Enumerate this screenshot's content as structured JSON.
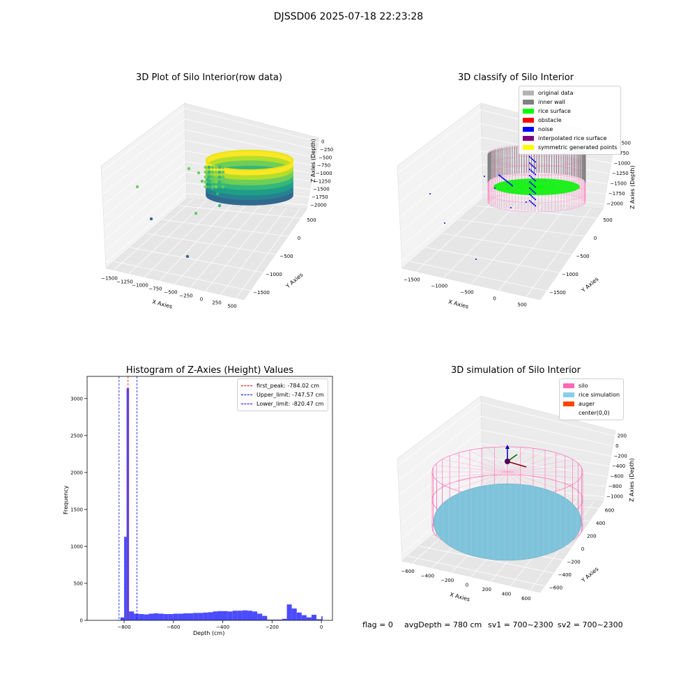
{
  "suptitle": "DJSSD06 2025-07-18 22:23:28",
  "chart_data": [
    {
      "type": "scatter",
      "subtype": "3d",
      "title": "3D Plot of Silo Interior(row data)",
      "xlabel": "X Axies",
      "ylabel": "Y Axies",
      "zlabel": "Z Axies (Depth)",
      "x_ticks": [
        "−1500",
        "−1250",
        "−1000",
        "−750",
        "−500",
        "−250",
        "0",
        "250",
        "500"
      ],
      "y_ticks": [
        "500",
        "0",
        "−500",
        "−1000",
        "−1500"
      ],
      "z_ticks": [
        "0",
        "−250",
        "−500",
        "−750",
        "−1000",
        "−1250",
        "−1500",
        "−1750",
        "−2000"
      ],
      "colormap": "viridis",
      "grid": true
    },
    {
      "type": "scatter",
      "subtype": "3d",
      "title": "3D classify of Silo Interior",
      "xlabel": "X Axies",
      "ylabel": "Y Axies",
      "zlabel": "Z Axies (Depth)",
      "x_ticks": [
        "−1500",
        "−1000",
        "−500",
        "0",
        "500"
      ],
      "y_ticks": [
        "500",
        "0",
        "−500",
        "−1000",
        "−1500"
      ],
      "z_ticks": [
        "−500",
        "−750",
        "−1000",
        "−1250",
        "−1500",
        "−1750",
        "−2000"
      ],
      "legend_position": "top-right",
      "legend": [
        {
          "label": "original data",
          "color": "#b3b3b3"
        },
        {
          "label": "inner wall",
          "color": "#808080"
        },
        {
          "label": "rice surface",
          "color": "#00ff00"
        },
        {
          "label": "obstacle",
          "color": "#ff0000"
        },
        {
          "label": "noise",
          "color": "#0000ff"
        },
        {
          "label": "interpolated rice surface",
          "color": "#800080"
        },
        {
          "label": "symmetric generated points",
          "color": "#ffff00"
        }
      ],
      "grid": true
    },
    {
      "type": "bar",
      "subtype": "histogram",
      "title": "Histogram of Z-Axies (Height) Values",
      "xlabel": "Depth (cm)",
      "ylabel": "Frequency",
      "xlim": [
        -950,
        45
      ],
      "ylim": [
        0,
        3300
      ],
      "x_ticks": [
        -800,
        -600,
        -400,
        -200,
        0
      ],
      "y_ticks": [
        0,
        500,
        1000,
        1500,
        2000,
        2500,
        3000
      ],
      "bar_color": "#4b4bff",
      "bins": [
        [
          -830,
          -815,
          5
        ],
        [
          -815,
          -800,
          40
        ],
        [
          -800,
          -790,
          1130
        ],
        [
          -790,
          -780,
          3140
        ],
        [
          -780,
          -760,
          120
        ],
        [
          -760,
          -740,
          90
        ],
        [
          -740,
          -720,
          85
        ],
        [
          -720,
          -700,
          80
        ],
        [
          -700,
          -680,
          90
        ],
        [
          -680,
          -660,
          95
        ],
        [
          -660,
          -640,
          90
        ],
        [
          -640,
          -620,
          85
        ],
        [
          -620,
          -600,
          85
        ],
        [
          -600,
          -580,
          90
        ],
        [
          -580,
          -560,
          90
        ],
        [
          -560,
          -540,
          95
        ],
        [
          -540,
          -520,
          95
        ],
        [
          -520,
          -500,
          100
        ],
        [
          -500,
          -480,
          100
        ],
        [
          -480,
          -460,
          105
        ],
        [
          -460,
          -440,
          110
        ],
        [
          -440,
          -420,
          120
        ],
        [
          -420,
          -400,
          125
        ],
        [
          -400,
          -380,
          125
        ],
        [
          -380,
          -360,
          120
        ],
        [
          -360,
          -340,
          130
        ],
        [
          -340,
          -320,
          130
        ],
        [
          -320,
          -300,
          135
        ],
        [
          -300,
          -280,
          130
        ],
        [
          -280,
          -260,
          120
        ],
        [
          -260,
          -240,
          90
        ],
        [
          -240,
          -220,
          60
        ],
        [
          -220,
          -200,
          10
        ],
        [
          -200,
          -180,
          10
        ],
        [
          -180,
          -160,
          10
        ],
        [
          -160,
          -140,
          20
        ],
        [
          -140,
          -120,
          215
        ],
        [
          -120,
          -100,
          160
        ],
        [
          -100,
          -80,
          105
        ],
        [
          -80,
          -60,
          70
        ],
        [
          -60,
          -40,
          40
        ],
        [
          -40,
          -20,
          75
        ],
        [
          -20,
          0,
          15
        ],
        [
          0,
          5,
          55
        ]
      ],
      "lines": [
        {
          "label": "first_peak: -784.02 cm",
          "x": -784.02,
          "color": "#ff0000"
        },
        {
          "label": "Upper_limit: -747.57 cm",
          "x": -747.57,
          "color": "#0000ff"
        },
        {
          "label": "Lower_limit: -820.47 cm",
          "x": -820.47,
          "color": "#0000ff"
        }
      ],
      "legend_position": "top-right",
      "grid": false
    },
    {
      "type": "scatter",
      "subtype": "3d",
      "title": "3D simulation of Silo Interior",
      "xlabel": "X Axies",
      "ylabel": "Y Axies",
      "zlabel": "Z Axies (Depth)",
      "x_ticks": [
        "−600",
        "−400",
        "−200",
        "0",
        "200",
        "400",
        "600"
      ],
      "y_ticks": [
        "600",
        "400",
        "200",
        "0",
        "−200",
        "−400",
        "−600"
      ],
      "z_ticks": [
        "200",
        "0",
        "−200",
        "−400",
        "−600",
        "−800",
        "−1000"
      ],
      "legend_position": "top-right",
      "legend": [
        {
          "label": "silo",
          "color": "#ff69b4"
        },
        {
          "label": "rice simulation",
          "color": "#87ceeb"
        },
        {
          "label": "auger",
          "color": "#ff4500"
        },
        {
          "label": "center(0,0)",
          "color": ""
        }
      ],
      "grid": true
    }
  ],
  "status": {
    "flag": "flag = 0",
    "avg_depth": "avgDepth = 780 cm",
    "sv1": "sv1 = 700~2300",
    "sv2": "sv2 = 700~2300"
  }
}
